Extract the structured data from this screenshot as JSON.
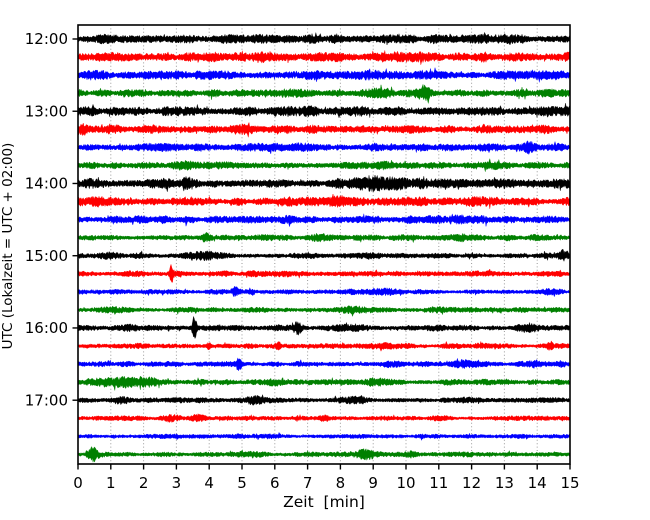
{
  "chart_data": {
    "type": "line",
    "subtype": "helicorder-dayplot",
    "title": "",
    "xlabel": "Zeit  [min]",
    "ylabel": "UTC (Lokalzeit = UTC + 02:00)",
    "xlim": [
      0,
      15
    ],
    "xticks": [
      0,
      1,
      2,
      3,
      4,
      5,
      6,
      7,
      8,
      9,
      10,
      11,
      12,
      13,
      14,
      15
    ],
    "ytick_labels": [
      "12:00",
      "13:00",
      "14:00",
      "15:00",
      "16:00",
      "17:00"
    ],
    "minutes_per_row": 15,
    "grid": {
      "vertical_dotted": true,
      "color": "#9a9a9a"
    },
    "frame_color": "#000000",
    "trace_color_cycle": [
      "#000000",
      "#ff0000",
      "#0000ff",
      "#008000"
    ],
    "noise_seed": 7,
    "traces": [
      {
        "start": "12:00",
        "color": "#000000",
        "amp": 4.6,
        "bursts": [
          {
            "t": 5.6,
            "a": 1.2,
            "w": 0.8
          },
          {
            "t": 9.2,
            "a": 1.0,
            "w": 0.6
          }
        ]
      },
      {
        "start": "12:15",
        "color": "#ff0000",
        "amp": 4.8,
        "bursts": [
          {
            "t": 5.3,
            "a": 1.5,
            "w": 0.7
          },
          {
            "t": 9.6,
            "a": 1.2,
            "w": 0.8
          }
        ]
      },
      {
        "start": "12:30",
        "color": "#0000ff",
        "amp": 4.6,
        "bursts": [
          {
            "t": 2.2,
            "a": 1.2,
            "w": 0.4
          },
          {
            "t": 8.2,
            "a": 1.2,
            "w": 0.9
          }
        ]
      },
      {
        "start": "12:45",
        "color": "#008000",
        "amp": 4.0,
        "bursts": [
          {
            "t": 10.55,
            "a": 4.5,
            "w": 0.22
          },
          {
            "t": 9.2,
            "a": 1.2,
            "w": 0.5
          },
          {
            "t": 6.4,
            "a": 1.0,
            "w": 0.5
          }
        ]
      },
      {
        "start": "13:00",
        "color": "#000000",
        "amp": 4.6,
        "bursts": [
          {
            "t": 6.6,
            "a": 1.2,
            "w": 0.9
          },
          {
            "t": 8.6,
            "a": 1.2,
            "w": 0.6
          }
        ]
      },
      {
        "start": "13:15",
        "color": "#ff0000",
        "amp": 4.4,
        "bursts": [
          {
            "t": 0.15,
            "a": 2.5,
            "w": 0.12
          },
          {
            "t": 5.0,
            "a": 1.5,
            "w": 0.4
          },
          {
            "t": 7.8,
            "a": 1.0,
            "w": 0.6
          }
        ]
      },
      {
        "start": "13:30",
        "color": "#0000ff",
        "amp": 4.0,
        "bursts": [
          {
            "t": 13.75,
            "a": 3.5,
            "w": 0.12
          },
          {
            "t": 6.6,
            "a": 1.2,
            "w": 0.7
          }
        ]
      },
      {
        "start": "13:45",
        "color": "#008000",
        "amp": 3.6,
        "bursts": [
          {
            "t": 3.3,
            "a": 1.8,
            "w": 0.25
          },
          {
            "t": 9.0,
            "a": 1.6,
            "w": 0.8
          },
          {
            "t": 12.6,
            "a": 1.0,
            "w": 0.4
          }
        ]
      },
      {
        "start": "14:00",
        "color": "#000000",
        "amp": 4.8,
        "bursts": [
          {
            "t": 0.4,
            "a": 1.8,
            "w": 0.3
          },
          {
            "t": 3.3,
            "a": 1.6,
            "w": 0.4
          },
          {
            "t": 9.4,
            "a": 3.5,
            "w": 1.1
          },
          {
            "t": 11.3,
            "a": 1.5,
            "w": 0.5
          }
        ]
      },
      {
        "start": "14:15",
        "color": "#ff0000",
        "amp": 4.4,
        "bursts": [
          {
            "t": 0.6,
            "a": 2.2,
            "w": 0.3
          },
          {
            "t": 7.6,
            "a": 1.6,
            "w": 1.4
          },
          {
            "t": 12.0,
            "a": 1.0,
            "w": 0.6
          }
        ]
      },
      {
        "start": "14:30",
        "color": "#0000ff",
        "amp": 4.0,
        "bursts": [
          {
            "t": 5.8,
            "a": 1.0,
            "w": 0.8
          },
          {
            "t": 11.5,
            "a": 1.2,
            "w": 0.9
          }
        ]
      },
      {
        "start": "14:45",
        "color": "#008000",
        "amp": 3.2,
        "bursts": [
          {
            "t": 3.9,
            "a": 3.2,
            "w": 0.13
          },
          {
            "t": 7.4,
            "a": 2.2,
            "w": 0.3
          },
          {
            "t": 11.8,
            "a": 1.2,
            "w": 0.4
          }
        ]
      },
      {
        "start": "15:00",
        "color": "#000000",
        "amp": 3.0,
        "bursts": [
          {
            "t": 1.0,
            "a": 1.8,
            "w": 0.4
          },
          {
            "t": 3.8,
            "a": 1.8,
            "w": 0.5
          },
          {
            "t": 8.6,
            "a": 1.2,
            "w": 0.5
          },
          {
            "t": 14.75,
            "a": 3.5,
            "w": 0.1
          }
        ]
      },
      {
        "start": "15:15",
        "color": "#ff0000",
        "amp": 3.0,
        "bursts": [
          {
            "t": 2.85,
            "a": 8.0,
            "w": 0.055
          },
          {
            "t": 6.3,
            "a": 1.0,
            "w": 0.4
          },
          {
            "t": 12.5,
            "a": 1.2,
            "w": 0.3
          }
        ]
      },
      {
        "start": "15:30",
        "color": "#0000ff",
        "amp": 2.7,
        "bursts": [
          {
            "t": 4.8,
            "a": 2.8,
            "w": 0.09
          },
          {
            "t": 9.2,
            "a": 1.0,
            "w": 0.5
          },
          {
            "t": 14.3,
            "a": 1.2,
            "w": 0.2
          }
        ]
      },
      {
        "start": "15:45",
        "color": "#008000",
        "amp": 2.7,
        "bursts": [
          {
            "t": 1.2,
            "a": 0.8,
            "w": 0.5
          },
          {
            "t": 8.3,
            "a": 1.4,
            "w": 0.5
          },
          {
            "t": 11.0,
            "a": 0.8,
            "w": 0.5
          }
        ]
      },
      {
        "start": "16:00",
        "color": "#000000",
        "amp": 3.0,
        "bursts": [
          {
            "t": 3.55,
            "a": 10.5,
            "w": 0.06
          },
          {
            "t": 1.6,
            "a": 1.8,
            "w": 0.3
          },
          {
            "t": 6.7,
            "a": 4.5,
            "w": 0.13
          },
          {
            "t": 8.2,
            "a": 1.8,
            "w": 0.5
          },
          {
            "t": 10.9,
            "a": 1.4,
            "w": 0.3
          },
          {
            "t": 13.7,
            "a": 2.2,
            "w": 0.25
          }
        ]
      },
      {
        "start": "16:15",
        "color": "#ff0000",
        "amp": 2.7,
        "bursts": [
          {
            "t": 4.0,
            "a": 2.2,
            "w": 0.1
          },
          {
            "t": 6.1,
            "a": 2.6,
            "w": 0.08
          },
          {
            "t": 9.3,
            "a": 1.2,
            "w": 0.4
          },
          {
            "t": 12.2,
            "a": 1.0,
            "w": 0.3
          },
          {
            "t": 14.4,
            "a": 3.2,
            "w": 0.07
          }
        ]
      },
      {
        "start": "16:30",
        "color": "#0000ff",
        "amp": 2.7,
        "bursts": [
          {
            "t": 4.9,
            "a": 4.2,
            "w": 0.08
          },
          {
            "t": 9.5,
            "a": 1.8,
            "w": 0.3
          },
          {
            "t": 11.9,
            "a": 2.2,
            "w": 0.45
          },
          {
            "t": 13.9,
            "a": 1.8,
            "w": 0.18
          },
          {
            "t": 14.7,
            "a": 1.8,
            "w": 0.15
          }
        ]
      },
      {
        "start": "16:45",
        "color": "#008000",
        "amp": 3.0,
        "bursts": [
          {
            "t": 1.4,
            "a": 2.8,
            "w": 0.8
          },
          {
            "t": 2.2,
            "a": 1.8,
            "w": 0.4
          },
          {
            "t": 6.0,
            "a": 1.2,
            "w": 0.5
          },
          {
            "t": 9.0,
            "a": 1.2,
            "w": 0.6
          }
        ]
      },
      {
        "start": "17:00",
        "color": "#000000",
        "amp": 2.7,
        "bursts": [
          {
            "t": 1.3,
            "a": 2.2,
            "w": 0.3
          },
          {
            "t": 5.4,
            "a": 2.2,
            "w": 0.3
          },
          {
            "t": 8.4,
            "a": 2.0,
            "w": 0.45
          },
          {
            "t": 11.9,
            "a": 1.2,
            "w": 0.4
          }
        ]
      },
      {
        "start": "17:15",
        "color": "#ff0000",
        "amp": 2.5,
        "bursts": [
          {
            "t": 2.8,
            "a": 2.2,
            "w": 0.3
          },
          {
            "t": 3.6,
            "a": 2.0,
            "w": 0.2
          },
          {
            "t": 7.5,
            "a": 1.8,
            "w": 0.2
          },
          {
            "t": 11.1,
            "a": 1.6,
            "w": 0.3
          }
        ]
      },
      {
        "start": "17:30",
        "color": "#0000ff",
        "amp": 2.3,
        "bursts": [
          {
            "t": 5.8,
            "a": 0.8,
            "w": 0.6
          },
          {
            "t": 9.0,
            "a": 0.6,
            "w": 0.8
          }
        ]
      },
      {
        "start": "17:45",
        "color": "#008000",
        "amp": 2.6,
        "bursts": [
          {
            "t": 0.45,
            "a": 6.0,
            "w": 0.15
          },
          {
            "t": 5.3,
            "a": 1.0,
            "w": 0.3
          },
          {
            "t": 8.8,
            "a": 3.8,
            "w": 0.3
          },
          {
            "t": 10.2,
            "a": 1.4,
            "w": 0.15
          },
          {
            "t": 11.7,
            "a": 1.2,
            "w": 0.35
          }
        ]
      }
    ]
  }
}
